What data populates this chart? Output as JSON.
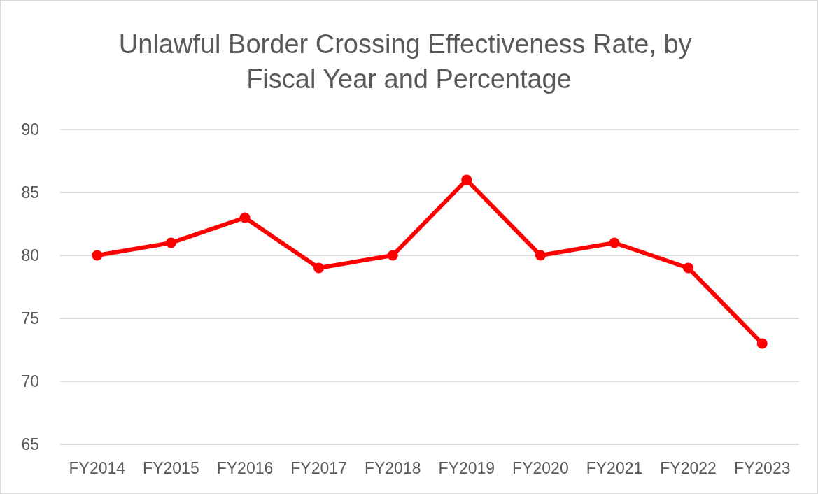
{
  "chart_data": {
    "type": "line",
    "title": "Unlawful Border Crossing Effectiveness Rate, by Fiscal Year and Percentage",
    "categories": [
      "FY2014",
      "FY2015",
      "FY2016",
      "FY2017",
      "FY2018",
      "FY2019",
      "FY2020",
      "FY2021",
      "FY2022",
      "FY2023"
    ],
    "series": [
      {
        "color": "#ff0000",
        "values": [
          80,
          81,
          83,
          79,
          80,
          86,
          80,
          81,
          79,
          73
        ]
      }
    ],
    "ylim": [
      65,
      90
    ],
    "yticks": [
      65,
      70,
      75,
      80,
      85,
      90
    ],
    "grid": "y",
    "marker": "circle",
    "line_style": "solid"
  }
}
